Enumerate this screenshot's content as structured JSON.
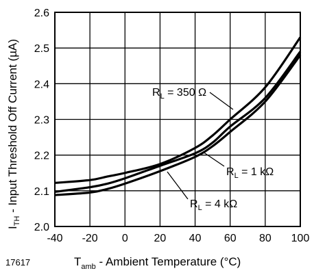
{
  "chart_data": {
    "type": "line",
    "figure_id": "17617",
    "title": "",
    "xlabel": {
      "main": "T",
      "sub": "amb",
      "rest": " - Ambient Temperature (°C)"
    },
    "ylabel": {
      "main": "I",
      "sub": "TH",
      "rest": " - Input Threshold Off Current (µA)"
    },
    "xlim": [
      -40,
      100
    ],
    "ylim": [
      2.0,
      2.6
    ],
    "xticks": [
      -40,
      -20,
      0,
      20,
      40,
      60,
      80,
      100
    ],
    "yticks": [
      2.0,
      2.1,
      2.2,
      2.3,
      2.4,
      2.5,
      2.6
    ],
    "xtick_labels": [
      "-40",
      "-20",
      "0",
      "20",
      "40",
      "60",
      "80",
      "100"
    ],
    "ytick_labels": [
      "2.0",
      "2.1",
      "2.2",
      "2.3",
      "2.4",
      "2.5",
      "2.6"
    ],
    "grid": true,
    "series": [
      {
        "x": [
          -40,
          -20,
          -10,
          0,
          20,
          40,
          50,
          60,
          80,
          100
        ],
        "y": [
          2.122,
          2.13,
          2.14,
          2.15,
          2.175,
          2.22,
          2.255,
          2.3,
          2.39,
          2.53
        ]
      },
      {
        "x": [
          -40,
          -20,
          -10,
          0,
          20,
          40,
          50,
          60,
          80,
          100
        ],
        "y": [
          2.097,
          2.11,
          2.12,
          2.135,
          2.17,
          2.205,
          2.235,
          2.28,
          2.36,
          2.49
        ]
      },
      {
        "x": [
          -40,
          -20,
          -10,
          0,
          20,
          40,
          50,
          60,
          80,
          100
        ],
        "y": [
          2.088,
          2.095,
          2.105,
          2.12,
          2.155,
          2.195,
          2.225,
          2.265,
          2.35,
          2.48
        ]
      }
    ],
    "annotations": [
      {
        "id": "rl-350",
        "main": "R",
        "sub": "L",
        "rest": " = 350 Ω",
        "points_to_series": 0
      },
      {
        "id": "rl-1k",
        "main": "R",
        "sub": "L",
        "rest": " = 1 kΩ",
        "points_to_series": 1
      },
      {
        "id": "rl-4k",
        "main": "R",
        "sub": "L",
        "rest": " = 4 kΩ",
        "points_to_series": 2
      }
    ]
  }
}
